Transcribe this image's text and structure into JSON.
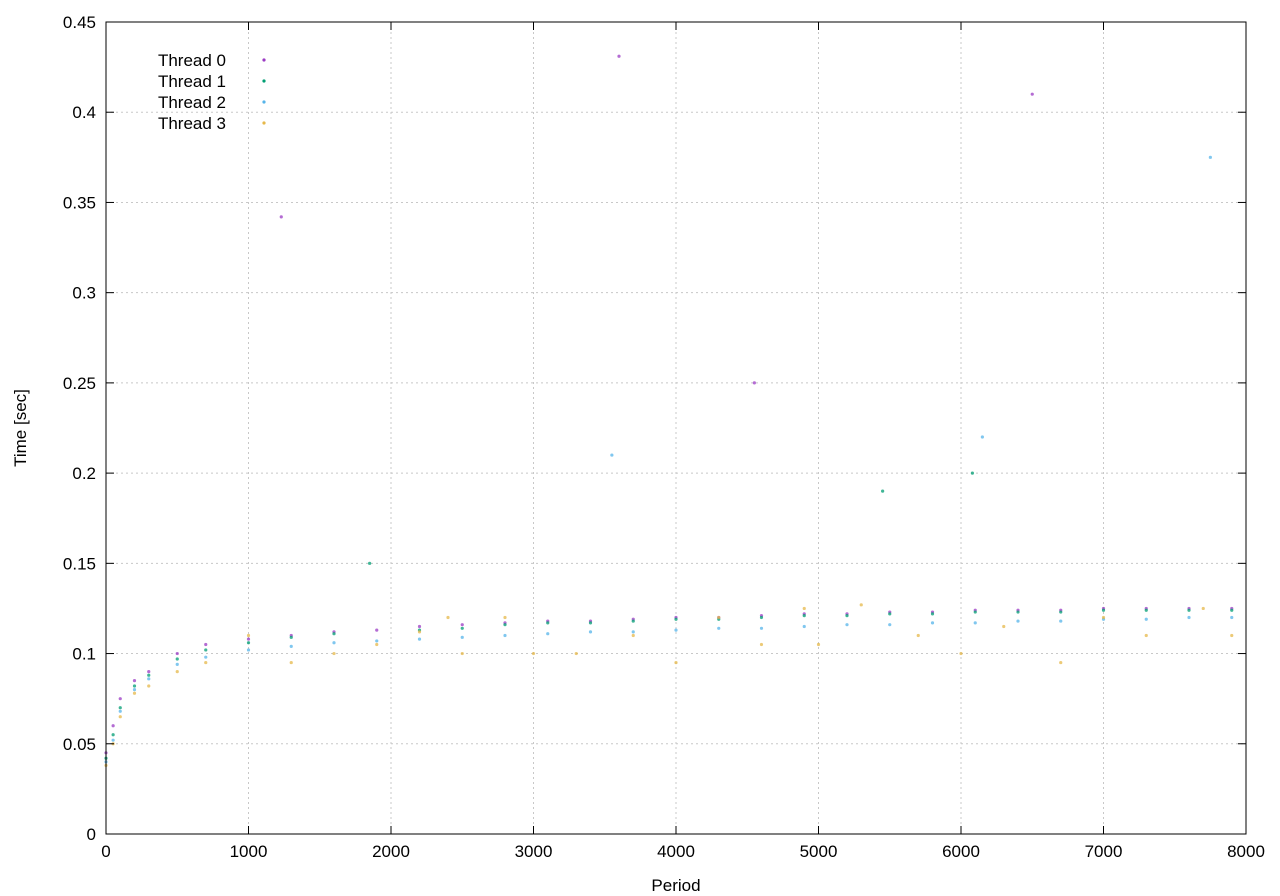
{
  "chart_data": {
    "type": "scatter",
    "title": "",
    "xlabel": "Period",
    "ylabel": "Time [sec]",
    "xlim": [
      0,
      8000
    ],
    "ylim": [
      0,
      0.45
    ],
    "xticks": [
      0,
      1000,
      2000,
      3000,
      4000,
      5000,
      6000,
      7000,
      8000
    ],
    "yticks": [
      0,
      0.05,
      0.1,
      0.15,
      0.2,
      0.25,
      0.3,
      0.35,
      0.4,
      0.45
    ],
    "grid": true,
    "legend_position": "top-left",
    "series": [
      {
        "name": "Thread 0",
        "color": "#9b3bc4",
        "x": [
          0,
          50,
          100,
          200,
          300,
          500,
          700,
          1000,
          1300,
          1600,
          1900,
          2200,
          2500,
          2800,
          3100,
          3400,
          3700,
          4000,
          4300,
          4600,
          4900,
          5200,
          5500,
          5800,
          6100,
          6400,
          6700,
          7000,
          7300,
          7600,
          7900,
          1230,
          3600,
          4550,
          6500
        ],
        "y": [
          0.045,
          0.06,
          0.075,
          0.085,
          0.09,
          0.1,
          0.105,
          0.108,
          0.11,
          0.112,
          0.113,
          0.115,
          0.116,
          0.117,
          0.118,
          0.118,
          0.119,
          0.12,
          0.12,
          0.121,
          0.122,
          0.122,
          0.123,
          0.123,
          0.124,
          0.124,
          0.124,
          0.125,
          0.125,
          0.125,
          0.125,
          0.342,
          0.431,
          0.25,
          0.41
        ]
      },
      {
        "name": "Thread 1",
        "color": "#009e73",
        "x": [
          0,
          50,
          100,
          200,
          300,
          500,
          700,
          1000,
          1300,
          1600,
          1850,
          2200,
          2500,
          2800,
          3100,
          3400,
          3700,
          4000,
          4300,
          4600,
          4900,
          5200,
          5500,
          5800,
          6100,
          6400,
          6700,
          7000,
          7300,
          7600,
          7900,
          5450,
          6080
        ],
        "y": [
          0.042,
          0.055,
          0.07,
          0.082,
          0.088,
          0.097,
          0.102,
          0.106,
          0.109,
          0.111,
          0.15,
          0.113,
          0.114,
          0.116,
          0.117,
          0.117,
          0.118,
          0.119,
          0.119,
          0.12,
          0.121,
          0.121,
          0.122,
          0.122,
          0.123,
          0.123,
          0.123,
          0.124,
          0.124,
          0.124,
          0.124,
          0.19,
          0.2
        ]
      },
      {
        "name": "Thread 2",
        "color": "#56b4e9",
        "x": [
          0,
          50,
          100,
          200,
          300,
          500,
          700,
          1000,
          1300,
          1600,
          1900,
          2200,
          2500,
          2800,
          3100,
          3400,
          3700,
          4000,
          4300,
          4600,
          4900,
          5200,
          5500,
          5800,
          6100,
          6400,
          6700,
          7000,
          7300,
          7600,
          7900,
          3550,
          6150,
          7750
        ],
        "y": [
          0.04,
          0.052,
          0.068,
          0.08,
          0.086,
          0.094,
          0.098,
          0.102,
          0.104,
          0.106,
          0.107,
          0.108,
          0.109,
          0.11,
          0.111,
          0.112,
          0.112,
          0.113,
          0.114,
          0.114,
          0.115,
          0.116,
          0.116,
          0.117,
          0.117,
          0.118,
          0.118,
          0.119,
          0.119,
          0.12,
          0.12,
          0.21,
          0.22,
          0.375
        ]
      },
      {
        "name": "Thread 3",
        "color": "#e6b84a",
        "x": [
          0,
          50,
          100,
          200,
          300,
          500,
          700,
          1000,
          1300,
          1600,
          1900,
          2200,
          2400,
          2500,
          2800,
          3000,
          3300,
          3700,
          4000,
          4300,
          4600,
          4900,
          5000,
          5300,
          5700,
          6000,
          6300,
          6700,
          7000,
          7300,
          7700,
          7900
        ],
        "y": [
          0.038,
          0.05,
          0.065,
          0.078,
          0.082,
          0.09,
          0.095,
          0.11,
          0.095,
          0.1,
          0.105,
          0.112,
          0.12,
          0.1,
          0.12,
          0.1,
          0.1,
          0.11,
          0.095,
          0.12,
          0.105,
          0.125,
          0.105,
          0.127,
          0.11,
          0.1,
          0.115,
          0.095,
          0.12,
          0.11,
          0.125,
          0.11
        ]
      }
    ]
  }
}
